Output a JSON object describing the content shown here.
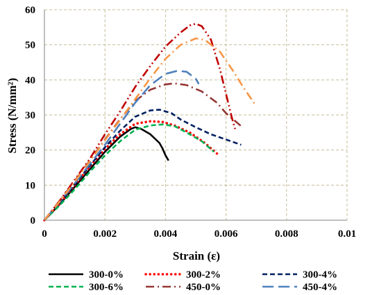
{
  "chart_data": {
    "type": "line",
    "xlabel": "Strain (ε)",
    "ylabel": "Stress (N/mm²)",
    "xlim": [
      0,
      0.01
    ],
    "ylim": [
      0,
      60
    ],
    "x_ticks": [
      "0",
      "0.002",
      "0.004",
      "0.006",
      "0.008",
      "0.01"
    ],
    "y_ticks": [
      "0",
      "10",
      "20",
      "30",
      "40",
      "50",
      "60"
    ],
    "grid": true,
    "grid_style": "dashed",
    "legend_position": "bottom",
    "series": [
      {
        "name": "300-0%",
        "color": "#000000",
        "dash": "solid",
        "points": [
          [
            0,
            0
          ],
          [
            0.0005,
            4.5
          ],
          [
            0.001,
            9.5
          ],
          [
            0.0015,
            14.5
          ],
          [
            0.002,
            19.5
          ],
          [
            0.0025,
            23.8
          ],
          [
            0.00285,
            26
          ],
          [
            0.003,
            26.5
          ],
          [
            0.0032,
            26
          ],
          [
            0.0035,
            24.5
          ],
          [
            0.0038,
            22
          ],
          [
            0.0039,
            20.5
          ],
          [
            0.004,
            18.5
          ],
          [
            0.0041,
            17
          ]
        ]
      },
      {
        "name": "300-2%",
        "color": "#ff0000",
        "dash": "dotted",
        "points": [
          [
            0,
            0
          ],
          [
            0.0005,
            4.8
          ],
          [
            0.001,
            10
          ],
          [
            0.0015,
            15.3
          ],
          [
            0.002,
            20.3
          ],
          [
            0.0025,
            24.5
          ],
          [
            0.003,
            27.5
          ],
          [
            0.0035,
            28.2
          ],
          [
            0.0039,
            28
          ],
          [
            0.0043,
            27
          ],
          [
            0.0048,
            25
          ],
          [
            0.0053,
            22
          ],
          [
            0.0057,
            19
          ]
        ]
      },
      {
        "name": "300-4%",
        "color": "#002060",
        "dash": "dashed",
        "points": [
          [
            0,
            0
          ],
          [
            0.0005,
            4.8
          ],
          [
            0.001,
            10.2
          ],
          [
            0.0015,
            15.5
          ],
          [
            0.002,
            20.8
          ],
          [
            0.0025,
            25.5
          ],
          [
            0.003,
            29.5
          ],
          [
            0.0035,
            31.3
          ],
          [
            0.0038,
            31.5
          ],
          [
            0.0042,
            30.5
          ],
          [
            0.0045,
            28.7
          ],
          [
            0.005,
            26.5
          ],
          [
            0.0055,
            24.5
          ],
          [
            0.006,
            23
          ],
          [
            0.0065,
            21.5
          ]
        ]
      },
      {
        "name": "300-6%",
        "color": "#00b050",
        "dash": "dashed",
        "points": [
          [
            0,
            0
          ],
          [
            0.0005,
            4.2
          ],
          [
            0.001,
            8.8
          ],
          [
            0.0015,
            13.8
          ],
          [
            0.002,
            18.5
          ],
          [
            0.0025,
            22.5
          ],
          [
            0.003,
            25.8
          ],
          [
            0.0035,
            27
          ],
          [
            0.0039,
            27.3
          ],
          [
            0.0043,
            26.8
          ],
          [
            0.0047,
            25
          ],
          [
            0.0052,
            22.5
          ],
          [
            0.0056,
            19.5
          ]
        ]
      },
      {
        "name": "450-0%",
        "color": "#943634",
        "dash": "dashdot",
        "points": [
          [
            0,
            0
          ],
          [
            0.0005,
            5.5
          ],
          [
            0.001,
            11.2
          ],
          [
            0.0015,
            17
          ],
          [
            0.002,
            23
          ],
          [
            0.0025,
            28.8
          ],
          [
            0.003,
            34
          ],
          [
            0.0035,
            37.2
          ],
          [
            0.004,
            38.7
          ],
          [
            0.0043,
            39
          ],
          [
            0.0047,
            38.5
          ],
          [
            0.0052,
            36.7
          ],
          [
            0.0057,
            33.5
          ],
          [
            0.006,
            30.5
          ],
          [
            0.0065,
            26.8
          ]
        ]
      },
      {
        "name": "450-4%",
        "color": "#4f81bd",
        "dash": "longdash",
        "points": [
          [
            0,
            0
          ],
          [
            0.0005,
            5.2
          ],
          [
            0.001,
            10.5
          ],
          [
            0.0015,
            16
          ],
          [
            0.002,
            21.5
          ],
          [
            0.0025,
            27.5
          ],
          [
            0.003,
            33.5
          ],
          [
            0.0035,
            38.5
          ],
          [
            0.004,
            41.7
          ],
          [
            0.0044,
            42.6
          ],
          [
            0.0047,
            42.3
          ],
          [
            0.005,
            40.3
          ],
          [
            0.0051,
            38.8
          ]
        ]
      },
      {
        "name": "",
        "color": "#c00000",
        "dash": "dashdotdot",
        "points": [
          [
            0,
            0
          ],
          [
            0.0005,
            5.5
          ],
          [
            0.001,
            11.5
          ],
          [
            0.0015,
            17.5
          ],
          [
            0.002,
            24.5
          ],
          [
            0.0025,
            31
          ],
          [
            0.003,
            38
          ],
          [
            0.0035,
            44
          ],
          [
            0.004,
            49.5
          ],
          [
            0.0045,
            53.5
          ],
          [
            0.0048,
            55.5
          ],
          [
            0.005,
            56
          ],
          [
            0.0052,
            55.3
          ],
          [
            0.0055,
            51.5
          ],
          [
            0.0058,
            43
          ],
          [
            0.006,
            36
          ],
          [
            0.0062,
            29
          ],
          [
            0.0063,
            26
          ]
        ]
      },
      {
        "name": "",
        "color": "#f79646",
        "dash": "dashdot",
        "points": [
          [
            0,
            0
          ],
          [
            0.0005,
            5.3
          ],
          [
            0.001,
            11
          ],
          [
            0.0015,
            16.8
          ],
          [
            0.002,
            22.8
          ],
          [
            0.0025,
            28.6
          ],
          [
            0.003,
            34.5
          ],
          [
            0.0035,
            40.5
          ],
          [
            0.004,
            46
          ],
          [
            0.0045,
            50
          ],
          [
            0.005,
            51.8
          ],
          [
            0.0053,
            51.4
          ],
          [
            0.0058,
            48
          ],
          [
            0.0062,
            43
          ],
          [
            0.0066,
            37.5
          ],
          [
            0.007,
            32.5
          ]
        ]
      }
    ]
  }
}
